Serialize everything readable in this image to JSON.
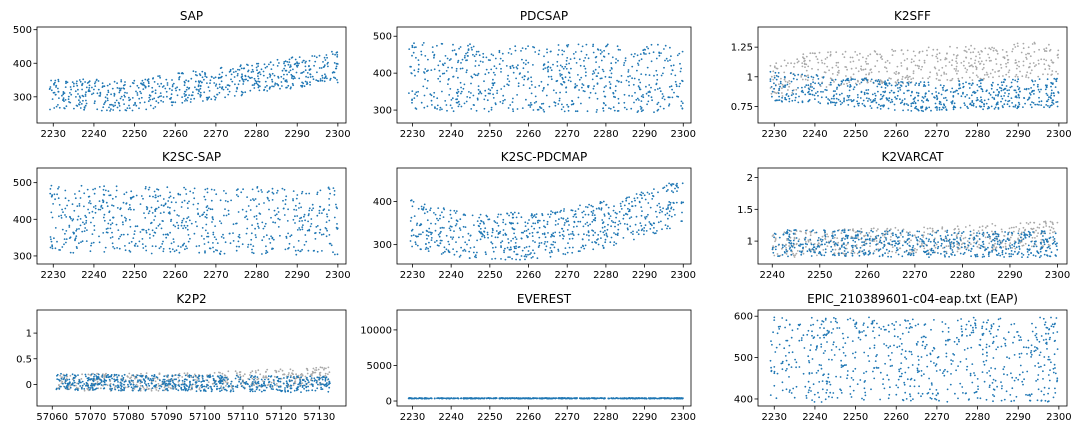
{
  "colors": {
    "primary": "#1f77b4",
    "secondary": "#a9a9a9"
  },
  "chart_data": [
    {
      "type": "scatter",
      "title": "SAP",
      "xlim": [
        2226,
        2302
      ],
      "ylim": [
        222,
        508
      ],
      "xticks": [
        2230,
        2240,
        2250,
        2260,
        2270,
        2280,
        2290,
        2300
      ],
      "yticks": [
        300,
        400,
        500
      ],
      "series": [
        {
          "color": "#1f77b4",
          "n": 700,
          "x": [
            2229,
            2300
          ],
          "trend": [
            [
              0,
              305
            ],
            [
              0.3,
              305
            ],
            [
              1,
              390
            ]
          ],
          "spread": 95
        }
      ]
    },
    {
      "type": "scatter",
      "title": "PDCSAP",
      "xlim": [
        2226,
        2302
      ],
      "ylim": [
        265,
        525
      ],
      "xticks": [
        2230,
        2240,
        2250,
        2260,
        2270,
        2280,
        2290,
        2300
      ],
      "yticks": [
        300,
        400,
        500
      ],
      "series": [
        {
          "color": "#1f77b4",
          "n": 720,
          "x": [
            2229,
            2300
          ],
          "trend": [
            [
              0,
              390
            ],
            [
              1,
              385
            ]
          ],
          "spread": 185
        }
      ]
    },
    {
      "type": "scatter",
      "title": "K2SFF",
      "xlim": [
        2226,
        2302
      ],
      "ylim": [
        0.61,
        1.42
      ],
      "xticks": [
        2230,
        2240,
        2250,
        2260,
        2270,
        2280,
        2290,
        2300
      ],
      "yticks": [
        0.75,
        1.0,
        1.25
      ],
      "series": [
        {
          "color": "#a9a9a9",
          "n": 500,
          "x": [
            2229,
            2300
          ],
          "trend": [
            [
              0,
              0.95
            ],
            [
              0.12,
              1.05
            ],
            [
              1,
              1.15
            ]
          ],
          "spread": 0.3
        },
        {
          "color": "#1f77b4",
          "n": 700,
          "x": [
            2229,
            2300
          ],
          "trend": [
            [
              0,
              0.92
            ],
            [
              0.12,
              0.9
            ],
            [
              0.5,
              0.83
            ],
            [
              1,
              0.87
            ]
          ],
          "spread": 0.25
        }
      ]
    },
    {
      "type": "scatter",
      "title": "K2SC-SAP",
      "xlim": [
        2226,
        2302
      ],
      "ylim": [
        278,
        540
      ],
      "xticks": [
        2230,
        2240,
        2250,
        2260,
        2270,
        2280,
        2290,
        2300
      ],
      "yticks": [
        300,
        400,
        500
      ],
      "series": [
        {
          "color": "#1f77b4",
          "n": 720,
          "x": [
            2229,
            2300
          ],
          "trend": [
            [
              0,
              400
            ],
            [
              1,
              395
            ]
          ],
          "spread": 185
        }
      ]
    },
    {
      "type": "scatter",
      "title": "K2SC-PDCMAP",
      "xlim": [
        2226,
        2302
      ],
      "ylim": [
        255,
        478
      ],
      "xticks": [
        2230,
        2240,
        2250,
        2260,
        2270,
        2280,
        2290,
        2300
      ],
      "yticks": [
        300,
        400
      ],
      "series": [
        {
          "color": "#1f77b4",
          "n": 720,
          "x": [
            2229,
            2300
          ],
          "trend": [
            [
              0,
              350
            ],
            [
              0.2,
              320
            ],
            [
              0.45,
              320
            ],
            [
              0.75,
              350
            ],
            [
              1,
              400
            ]
          ],
          "spread": 110
        }
      ]
    },
    {
      "type": "scatter",
      "title": "K2VARCAT",
      "xlim": [
        2237,
        2302
      ],
      "ylim": [
        0.64,
        2.15
      ],
      "xticks": [
        2240,
        2250,
        2260,
        2270,
        2280,
        2290,
        2300
      ],
      "yticks": [
        1.0,
        1.5,
        2.0
      ],
      "series": [
        {
          "color": "#a9a9a9",
          "n": 450,
          "x": [
            2240,
            2300
          ],
          "trend": [
            [
              0,
              0.95
            ],
            [
              0.6,
              1.02
            ],
            [
              1,
              1.12
            ]
          ],
          "spread": 0.42
        },
        {
          "color": "#1f77b4",
          "n": 650,
          "x": [
            2240,
            2300
          ],
          "trend": [
            [
              0,
              0.97
            ],
            [
              1,
              0.95
            ]
          ],
          "spread": 0.42
        }
      ]
    },
    {
      "type": "scatter",
      "title": "K2P2",
      "xlim": [
        57056,
        57137
      ],
      "ylim": [
        -0.42,
        1.45
      ],
      "xticks": [
        57060,
        57070,
        57080,
        57090,
        57100,
        57110,
        57120,
        57130
      ],
      "yticks": [
        0.0,
        0.5,
        1.0
      ],
      "series": [
        {
          "color": "#a9a9a9",
          "n": 450,
          "x": [
            57061,
            57133
          ],
          "trend": [
            [
              0,
              0.05
            ],
            [
              0.5,
              0.05
            ],
            [
              1,
              0.17
            ]
          ],
          "spread": 0.35
        },
        {
          "color": "#1f77b4",
          "n": 700,
          "x": [
            57061,
            57133
          ],
          "trend": [
            [
              0,
              0.05
            ],
            [
              1,
              0.0
            ]
          ],
          "spread": 0.32
        }
      ]
    },
    {
      "type": "scatter",
      "title": "EVEREST",
      "xlim": [
        2226,
        2302
      ],
      "ylim": [
        -700,
        12800
      ],
      "xticks": [
        2230,
        2240,
        2250,
        2260,
        2270,
        2280,
        2290,
        2300
      ],
      "yticks": [
        0,
        5000,
        10000
      ],
      "series": [
        {
          "color": "#1f77b4",
          "n": 600,
          "x": [
            2229,
            2300
          ],
          "trend": [
            [
              0,
              380
            ],
            [
              1,
              380
            ]
          ],
          "spread": 100
        }
      ]
    },
    {
      "type": "scatter",
      "title": "EPIC_210389601-c04-eap.txt (EAP)",
      "xlim": [
        2226,
        2302
      ],
      "ylim": [
        383,
        615
      ],
      "xticks": [
        2230,
        2240,
        2250,
        2260,
        2270,
        2280,
        2290,
        2300
      ],
      "yticks": [
        400,
        500,
        600
      ],
      "series": [
        {
          "color": "#1f77b4",
          "n": 720,
          "x": [
            2229,
            2300
          ],
          "trend": [
            [
              0,
              495
            ],
            [
              1,
              495
            ]
          ],
          "spread": 205
        }
      ]
    }
  ]
}
